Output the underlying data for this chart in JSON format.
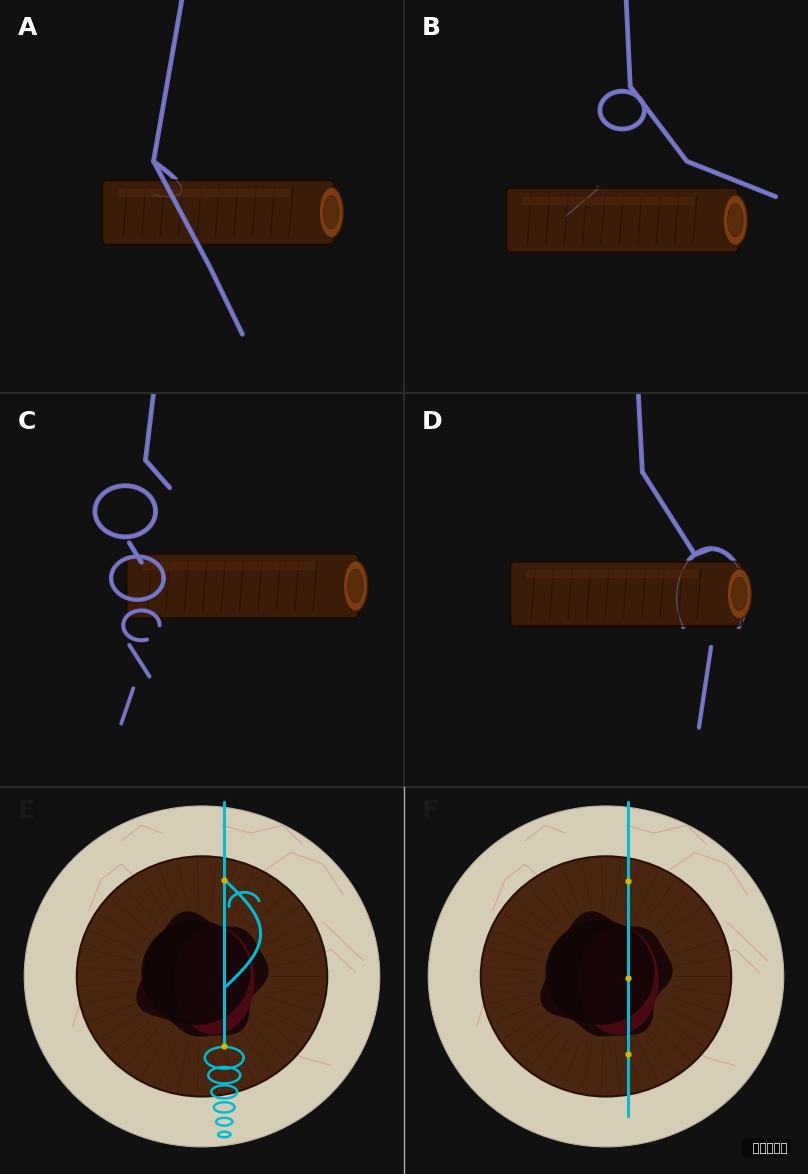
{
  "bg_color": "#111111",
  "label_color": "#ffffff",
  "label_fontsize": 18,
  "panel_labels": [
    "A",
    "B",
    "C",
    "D",
    "E",
    "F"
  ],
  "rope_color": "#7070c0",
  "suture_color": "#00bcd4",
  "watermark_text": "  金海鹰医生",
  "watermark_color": "#ffffff",
  "eye_sclera": "#d8d0b8",
  "eye_iris": "#4a2510",
  "eye_pupil": "#1a0808"
}
